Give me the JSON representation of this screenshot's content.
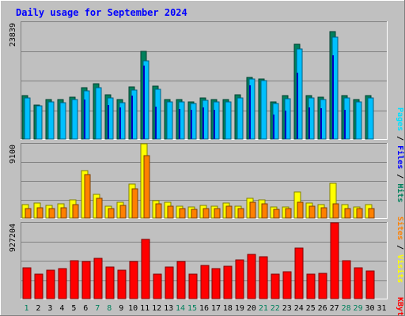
{
  "chart_data": {
    "type": "bar",
    "title": "Daily usage for September 2024",
    "days": [
      1,
      2,
      3,
      4,
      5,
      6,
      7,
      8,
      9,
      10,
      11,
      12,
      13,
      14,
      15,
      16,
      17,
      18,
      19,
      20,
      21,
      22,
      23,
      24,
      25,
      26,
      27,
      28,
      29,
      30,
      31
    ],
    "weekend_days": [
      1,
      7,
      8,
      14,
      15,
      21,
      22,
      28,
      29
    ],
    "panels": [
      {
        "id": "hits",
        "scale_label": "23839",
        "ylim": [
          0,
          23839
        ],
        "labels": [
          "Pages",
          "Files",
          "Hits"
        ],
        "series": [
          {
            "name": "Hits",
            "values": [
              8800,
              7000,
              8100,
              8000,
              8500,
              10500,
              11300,
              9000,
              8000,
              10700,
              17800,
              10800,
              8000,
              8000,
              7600,
              8300,
              8000,
              8100,
              9000,
              12500,
              12300,
              7600,
              8800,
              19300,
              8800,
              8600,
              21900,
              8800,
              8000,
              8800,
              0
            ]
          },
          {
            "name": "Files",
            "values": [
              8300,
              6700,
              7500,
              7400,
              8000,
              9800,
              10500,
              8400,
              7400,
              10000,
              16000,
              10100,
              7500,
              7500,
              7200,
              7900,
              7500,
              7600,
              8400,
              12300,
              12000,
              7200,
              8200,
              18300,
              8400,
              8000,
              20700,
              8400,
              7500,
              8300,
              0
            ]
          },
          {
            "name": "Pages",
            "values": [
              0,
              0,
              0,
              0,
              0,
              8100,
              0,
              6900,
              6500,
              8800,
              15000,
              6600,
              0,
              6200,
              6000,
              6400,
              6000,
              0,
              0,
              11000,
              0,
              5000,
              5800,
              13600,
              6500,
              6300,
              17000,
              6000,
              0,
              0,
              0
            ]
          }
        ]
      },
      {
        "id": "visits",
        "scale_label": "9100",
        "ylim": [
          0,
          9100
        ],
        "labels": [
          "Sites",
          "Visits"
        ],
        "series": [
          {
            "name": "Visits",
            "values": [
              1650,
              1800,
              1550,
              1750,
              2250,
              5800,
              2900,
              1450,
              1900,
              4200,
              9100,
              2150,
              1900,
              1450,
              1350,
              1550,
              1450,
              1800,
              1450,
              2400,
              2200,
              1350,
              1400,
              3150,
              1800,
              1650,
              4300,
              1650,
              1350,
              1650,
              0
            ]
          },
          {
            "name": "Sites",
            "values": [
              1150,
              1250,
              1150,
              1250,
              1650,
              5350,
              2450,
              1150,
              1550,
              3600,
              7650,
              1700,
              1450,
              1150,
              1050,
              1150,
              1150,
              1450,
              1150,
              1950,
              1700,
              1100,
              1150,
              1950,
              1450,
              1250,
              1750,
              1150,
              1150,
              1150,
              0
            ]
          }
        ]
      },
      {
        "id": "kbytes",
        "scale_label": "927204",
        "ylim": [
          0,
          927204
        ],
        "labels": [
          "KBytes"
        ],
        "series": [
          {
            "name": "KBytes",
            "values": [
              375000,
              300000,
              345000,
              370000,
              460000,
              455000,
              490000,
              390000,
              350000,
              450000,
              725000,
              300000,
              385000,
              450000,
              300000,
              405000,
              370000,
              400000,
              470000,
              540000,
              515000,
              295000,
              330000,
              615000,
              300000,
              310000,
              927204,
              460000,
              380000,
              340000,
              0
            ]
          }
        ]
      }
    ],
    "colors": {
      "hits": "#00805c",
      "files": "#00c0ff",
      "pages": "#00e0ff",
      "visits": "#ffff00",
      "sites": "#ff8000",
      "kbytes": "#ff0000",
      "title": "#0000ff",
      "day_weekday": "#000000",
      "day_weekend": "#00805c",
      "grid": "#808080",
      "panel_bg": "#c0c0c0"
    }
  }
}
